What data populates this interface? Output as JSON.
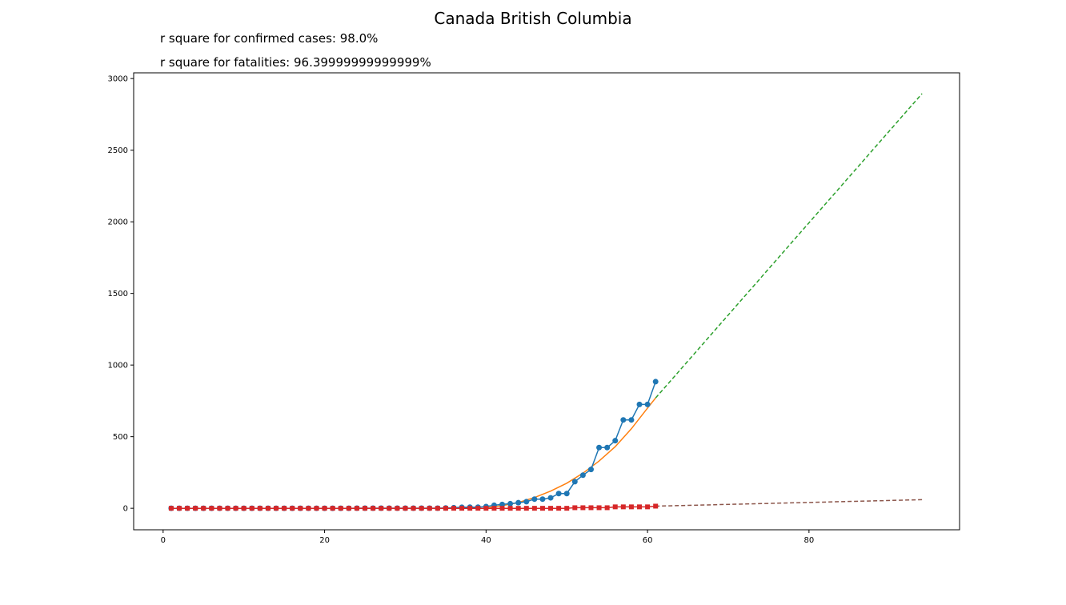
{
  "chart_data": {
    "type": "line",
    "title": "Canada British Columbia",
    "annotations": [
      "r square for confirmed cases: 98.0%",
      "r square for fatalities: 96.39999999999999%"
    ],
    "xlabel": "",
    "ylabel": "",
    "xlim": [
      -3.65,
      98.65
    ],
    "ylim": [
      -150,
      3040
    ],
    "xticks": [
      0,
      20,
      40,
      60,
      80
    ],
    "yticks": [
      0,
      500,
      1000,
      1500,
      2000,
      2500,
      3000
    ],
    "grid": false,
    "colors": {
      "confirmed": "#1f77b4",
      "confirmed_fit": "#ff7f0e",
      "confirmed_projection": "#2ca02c",
      "fatalities": "#d62728",
      "fatalities_projection": "#8c564b"
    },
    "series": [
      {
        "role": "confirmed",
        "marker": "circle",
        "x": [
          1,
          2,
          3,
          4,
          5,
          6,
          7,
          8,
          9,
          10,
          11,
          12,
          13,
          14,
          15,
          16,
          17,
          18,
          19,
          20,
          21,
          22,
          23,
          24,
          25,
          26,
          27,
          28,
          29,
          30,
          31,
          32,
          33,
          34,
          35,
          36,
          37,
          38,
          39,
          40,
          41,
          42,
          43,
          44,
          45,
          46,
          47,
          48,
          49,
          50,
          51,
          52,
          53,
          54,
          55,
          56,
          57,
          58,
          59,
          60,
          61
        ],
        "values": [
          0,
          0,
          0,
          0,
          0,
          0,
          0,
          0,
          0,
          0,
          0,
          0,
          0,
          0,
          0,
          0,
          0,
          0,
          0,
          0,
          0,
          0,
          0,
          1,
          1,
          1,
          1,
          1,
          1,
          1,
          1,
          1,
          1,
          1,
          2,
          4,
          7,
          8,
          8,
          12,
          21,
          27,
          32,
          39,
          46,
          64,
          64,
          73,
          103,
          103,
          186,
          231,
          271,
          424,
          424,
          472,
          617,
          617,
          725,
          725,
          884
        ]
      },
      {
        "role": "confirmed_fit",
        "line": "solid",
        "x": [
          40,
          42,
          44,
          46,
          48,
          50,
          52,
          54,
          56,
          58,
          60,
          61
        ],
        "values": [
          3,
          18,
          40,
          75,
          120,
          175,
          245,
          330,
          430,
          555,
          700,
          770
        ]
      },
      {
        "role": "confirmed_projection",
        "line": "dashed",
        "x": [
          61,
          94
        ],
        "values": [
          770,
          2895
        ]
      },
      {
        "role": "fatalities",
        "marker": "square",
        "x": [
          1,
          2,
          3,
          4,
          5,
          6,
          7,
          8,
          9,
          10,
          11,
          12,
          13,
          14,
          15,
          16,
          17,
          18,
          19,
          20,
          21,
          22,
          23,
          24,
          25,
          26,
          27,
          28,
          29,
          30,
          31,
          32,
          33,
          34,
          35,
          36,
          37,
          38,
          39,
          40,
          41,
          42,
          43,
          44,
          45,
          46,
          47,
          48,
          49,
          50,
          51,
          52,
          53,
          54,
          55,
          56,
          57,
          58,
          59,
          60,
          61
        ],
        "values": [
          0,
          0,
          0,
          0,
          0,
          0,
          0,
          0,
          0,
          0,
          0,
          0,
          0,
          0,
          0,
          0,
          0,
          0,
          0,
          0,
          0,
          0,
          0,
          0,
          0,
          0,
          0,
          0,
          0,
          0,
          0,
          0,
          0,
          0,
          0,
          0,
          0,
          0,
          0,
          0,
          0,
          0,
          0,
          0,
          0,
          0,
          0,
          0,
          0,
          0,
          4,
          4,
          4,
          4,
          4,
          10,
          10,
          10,
          10,
          10,
          15
        ]
      },
      {
        "role": "fatalities_projection",
        "line": "dashed",
        "x": [
          61,
          94
        ],
        "values": [
          15,
          60
        ]
      }
    ]
  }
}
